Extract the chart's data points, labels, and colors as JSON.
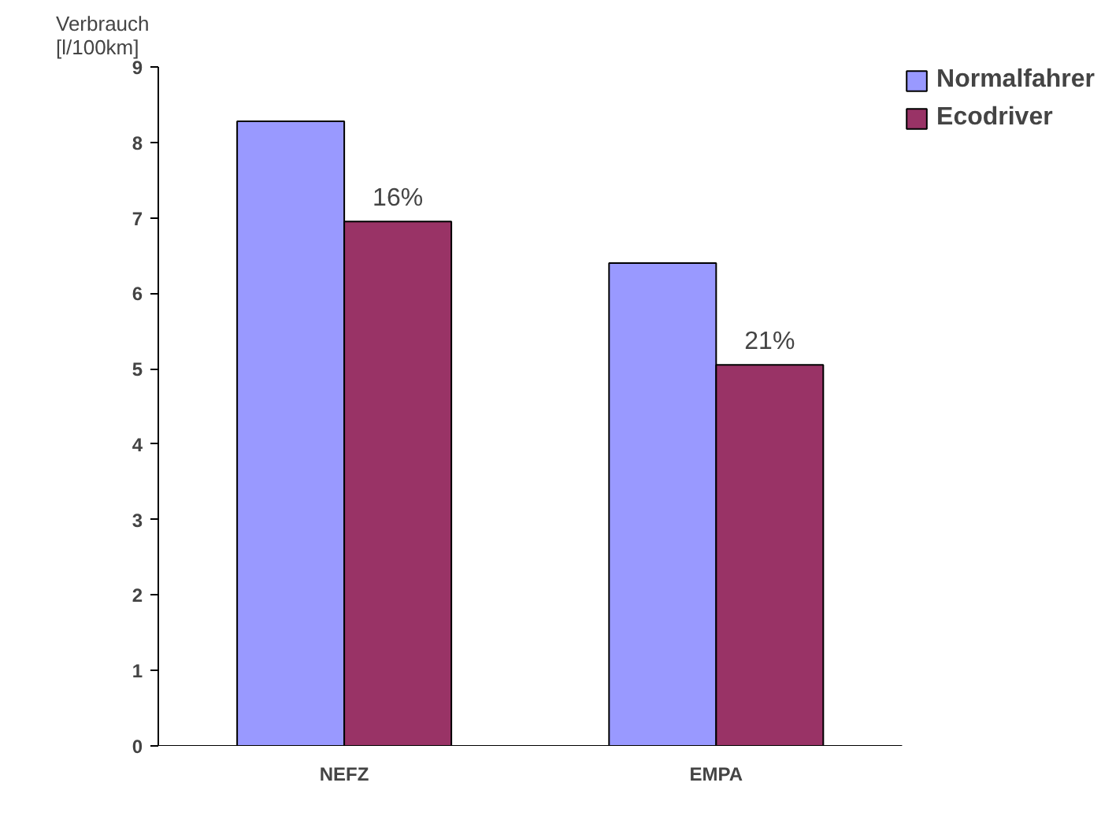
{
  "chart_data": {
    "type": "bar",
    "ylabel": "Verbrauch\n [l/100km]",
    "categories": [
      "NEFZ",
      "EMPA"
    ],
    "series": [
      {
        "name": "Normalfahrer",
        "color": "#9999ff",
        "values": [
          8.28,
          6.4
        ]
      },
      {
        "name": "Ecodriver",
        "color": "#993366",
        "values": [
          6.95,
          5.05
        ]
      }
    ],
    "annotations": [
      {
        "text": "16%",
        "x": "NEFZ",
        "y": 6.95
      },
      {
        "text": "21%",
        "x": "EMPA",
        "y": 5.05
      }
    ],
    "ylim": [
      0,
      9
    ],
    "yticks": [
      0,
      1,
      2,
      3,
      4,
      5,
      6,
      7,
      8,
      9
    ],
    "grid": false,
    "legend": "top right"
  }
}
